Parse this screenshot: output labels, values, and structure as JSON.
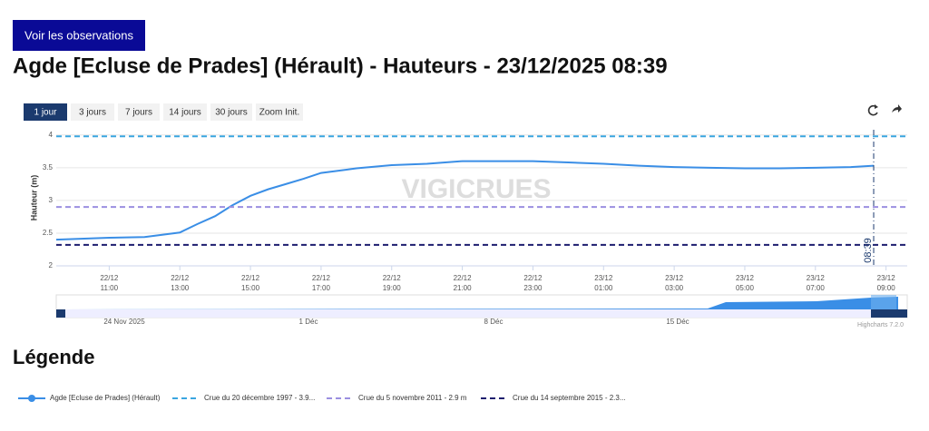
{
  "button": "Voir les observations",
  "title": "Agde [Ecluse de Prades] (Hérault) - Hauteurs - 23/12/2025 08:39",
  "range_buttons": [
    "1 jour",
    "3 jours",
    "7 jours",
    "14 jours",
    "30 jours",
    "Zoom Init."
  ],
  "legend_title": "Légende",
  "chart_data": {
    "type": "line",
    "y_label": "Hauteur (m)",
    "watermark": "VIGICRUES",
    "annotation": "08:39",
    "credits": "Highcharts 7.2.0",
    "navigator_labels": [
      "24 Nov 2025",
      "1 Déc",
      "8 Déc",
      "15 Déc"
    ],
    "xlim": [
      "22/12 09:30",
      "23/12 09:36"
    ],
    "xticks": [
      "22/12 11:00",
      "22/12 13:00",
      "22/12 15:00",
      "22/12 17:00",
      "22/12 19:00",
      "22/12 21:00",
      "22/12 23:00",
      "23/12 01:00",
      "23/12 03:00",
      "23/12 05:00",
      "23/12 07:00",
      "23/12 09:00"
    ],
    "ylim": [
      2,
      4.08
    ],
    "yticks": [
      2,
      2.5,
      3,
      3.5,
      4
    ],
    "grid": true,
    "x": [
      "22/12 09:30",
      "22/12 11:00",
      "22/12 12:00",
      "22/12 13:00",
      "22/12 13:30",
      "22/12 14:00",
      "22/12 14:30",
      "22/12 15:00",
      "22/12 15:30",
      "22/12 16:00",
      "22/12 16:30",
      "22/12 17:00",
      "22/12 18:00",
      "22/12 19:00",
      "22/12 20:00",
      "22/12 21:00",
      "22/12 22:00",
      "22/12 23:00",
      "23/12 00:00",
      "23/12 01:00",
      "23/12 02:00",
      "23/12 03:00",
      "23/12 04:00",
      "23/12 05:00",
      "23/12 06:00",
      "23/12 07:00",
      "23/12 08:00",
      "23/12 08:39"
    ],
    "series": [
      {
        "name": "Agde [Ecluse de Prades] (Hérault)",
        "color": "#3a8ee6",
        "values": [
          2.4,
          2.43,
          2.44,
          2.51,
          2.64,
          2.76,
          2.93,
          3.07,
          3.17,
          3.25,
          3.33,
          3.42,
          3.49,
          3.54,
          3.56,
          3.6,
          3.6,
          3.6,
          3.58,
          3.56,
          3.53,
          3.51,
          3.5,
          3.49,
          3.49,
          3.5,
          3.51,
          3.53
        ]
      },
      {
        "name": "Crue du 20 décembre 1997 - 3.9...",
        "color": "#3aa6e0",
        "value": 3.98
      },
      {
        "name": "Crue du 5 novembre 2011 - 2.9 m",
        "color": "#9b8fe0",
        "value": 2.9
      },
      {
        "name": "Crue du 14 septembre 2015 - 2.3...",
        "color": "#1d1d6e",
        "value": 2.32
      }
    ]
  }
}
